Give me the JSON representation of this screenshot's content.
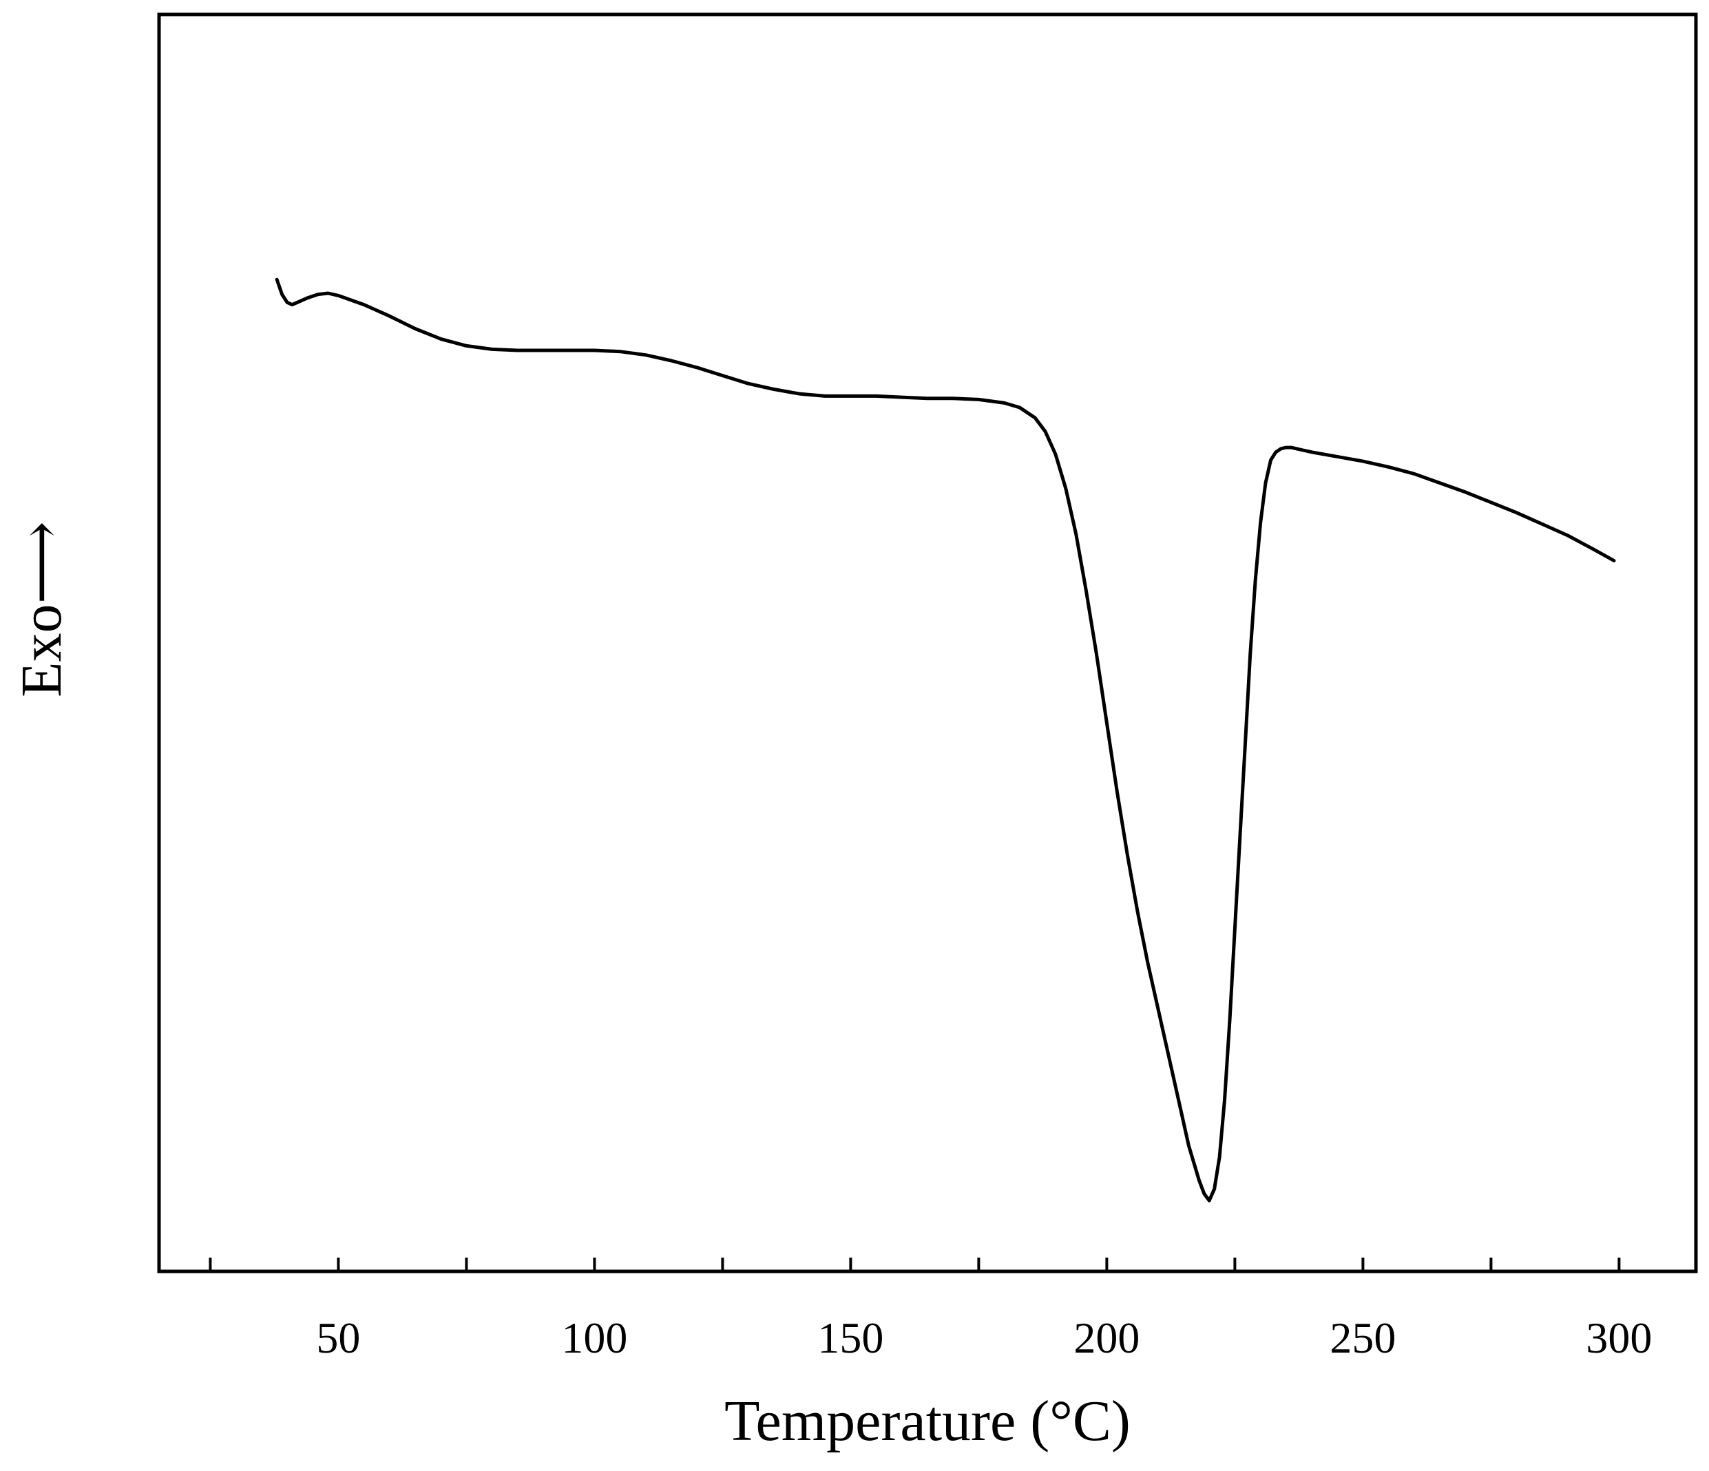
{
  "chart_data": {
    "type": "line",
    "title": "",
    "xlabel": "Temperature (°C)",
    "ylabel": "Exo⟶",
    "xlim": [
      15,
      315
    ],
    "ylim": [
      -100,
      10
    ],
    "y_ticks_shown": false,
    "grid": false,
    "x_major_ticks": [
      50,
      100,
      150,
      200,
      250,
      300
    ],
    "x_minor_ticks": [
      25,
      75,
      125,
      175,
      225,
      275
    ],
    "x_tick_labels": [
      "50",
      "100",
      "150",
      "200",
      "250",
      "300"
    ],
    "series": [
      {
        "color": "#000000",
        "x": [
          38,
          39,
          40,
          41,
          42,
          44,
          46,
          48,
          50,
          55,
          60,
          65,
          70,
          75,
          80,
          85,
          90,
          95,
          100,
          105,
          110,
          115,
          120,
          125,
          130,
          135,
          140,
          145,
          150,
          155,
          160,
          165,
          170,
          175,
          180,
          183,
          186,
          188,
          190,
          192,
          194,
          196,
          198,
          200,
          202,
          204,
          206,
          208,
          210,
          212,
          214,
          216,
          218,
          219,
          220,
          221,
          222,
          223,
          224,
          225,
          226,
          227,
          228,
          229,
          230,
          231,
          232,
          233,
          234,
          235,
          236,
          237,
          238,
          240,
          245,
          250,
          255,
          260,
          265,
          270,
          275,
          280,
          285,
          290,
          295,
          299
        ],
        "y": [
          -13.2,
          -14.5,
          -15.2,
          -15.4,
          -15.2,
          -14.8,
          -14.5,
          -14.4,
          -14.6,
          -15.4,
          -16.4,
          -17.5,
          -18.4,
          -19.0,
          -19.3,
          -19.4,
          -19.4,
          -19.4,
          -19.4,
          -19.5,
          -19.8,
          -20.3,
          -20.9,
          -21.6,
          -22.3,
          -22.8,
          -23.2,
          -23.4,
          -23.4,
          -23.4,
          -23.5,
          -23.6,
          -23.6,
          -23.7,
          -24.0,
          -24.4,
          -25.3,
          -26.5,
          -28.5,
          -31.5,
          -35.5,
          -40.5,
          -46.0,
          -52.0,
          -58.0,
          -63.5,
          -68.5,
          -73.0,
          -77.0,
          -81.0,
          -85.0,
          -89.0,
          -92.0,
          -93.2,
          -93.8,
          -92.8,
          -90.0,
          -85.0,
          -78.0,
          -70.0,
          -62.0,
          -54.0,
          -46.0,
          -39.5,
          -34.5,
          -31.0,
          -29.0,
          -28.3,
          -28.0,
          -27.9,
          -27.9,
          -28.0,
          -28.1,
          -28.3,
          -28.7,
          -29.1,
          -29.6,
          -30.2,
          -31.0,
          -31.8,
          -32.7,
          -33.6,
          -34.6,
          -35.6,
          -36.8,
          -37.8
        ]
      }
    ]
  }
}
